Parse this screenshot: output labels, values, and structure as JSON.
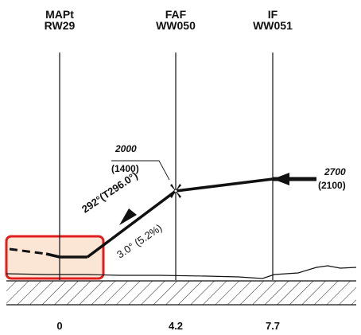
{
  "fixes": [
    {
      "name": "MAPt",
      "sub": "RW29"
    },
    {
      "name": "FAF",
      "sub": "WW050"
    },
    {
      "name": "IF",
      "sub": "WW051"
    }
  ],
  "distances": [
    "0",
    "4.2",
    "7.7"
  ],
  "altitudes": {
    "faf": {
      "msl": "2000",
      "agl": "(1400)"
    },
    "if": {
      "msl": "2700",
      "agl": "(2100)"
    }
  },
  "descent": {
    "course": "292°(T296.0°)",
    "glide": "3.0° (5.2%)"
  },
  "colors": {
    "highlight_border": "#e01e1e",
    "highlight_fill": "#fbe6d6",
    "ink": "#111111"
  }
}
